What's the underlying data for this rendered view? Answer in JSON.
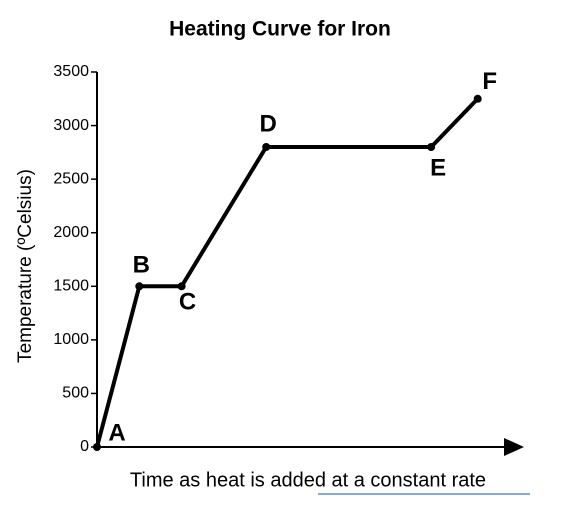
{
  "chart_data": {
    "type": "line",
    "title": "Heating Curve for Iron",
    "x_label": "Time as heat is added at a constant rate",
    "y_label": "Temperature (ºCelsius)",
    "point_labels": [
      "A",
      "B",
      "C",
      "D",
      "E",
      "F"
    ],
    "x": [
      0,
      10,
      20,
      40,
      79,
      90
    ],
    "series": [
      {
        "color": "#000000",
        "values": [
          0,
          1500,
          1500,
          2800,
          2800,
          3250
        ]
      }
    ],
    "xlim": [
      0,
      100
    ],
    "ylim": [
      0,
      3500
    ],
    "yticks": [
      0,
      500,
      1000,
      1500,
      2000,
      2500,
      3000,
      3500
    ]
  }
}
